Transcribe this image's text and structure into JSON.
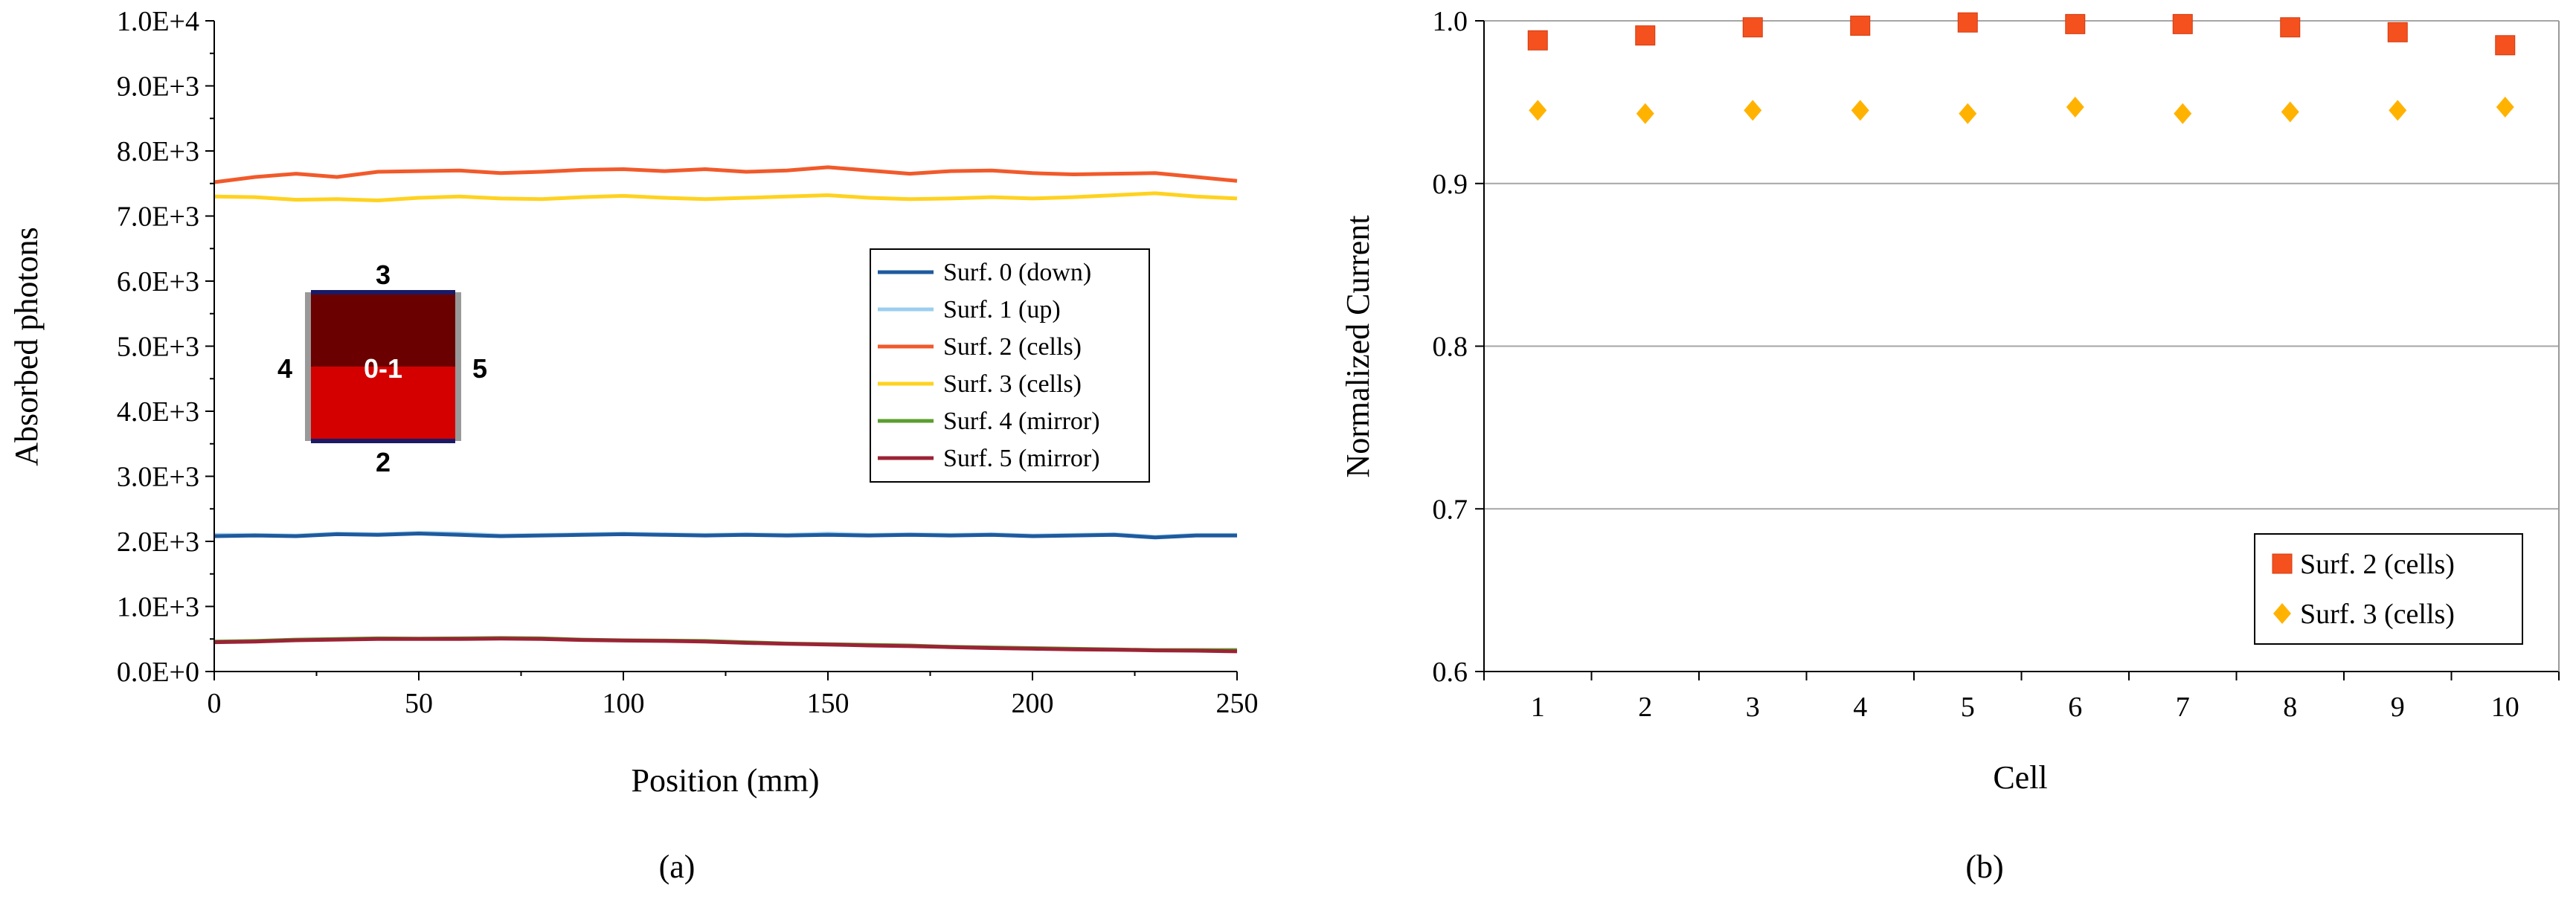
{
  "figure_labels": {
    "a": "(a)",
    "b": "(b)"
  },
  "inset": {
    "top": "3",
    "bottom": "2",
    "left": "4",
    "right": "5",
    "center": "0-1",
    "colors": {
      "upper": "#6b0000",
      "lower": "#d40000",
      "edge": "#1a1a66",
      "side": "#999999"
    }
  },
  "chart_data": [
    {
      "type": "line",
      "title": "",
      "xlabel": "Position (mm)",
      "ylabel": "Absorbed photons",
      "xlim": [
        0,
        250
      ],
      "ylim": [
        0,
        10000
      ],
      "xticks": [
        "0",
        "50",
        "100",
        "150",
        "200",
        "250"
      ],
      "yticks": [
        "0.0E+0",
        "1.0E+3",
        "2.0E+3",
        "3.0E+3",
        "4.0E+3",
        "5.0E+3",
        "6.0E+3",
        "7.0E+3",
        "8.0E+3",
        "9.0E+3",
        "1.0E+4"
      ],
      "x": [
        0,
        10,
        20,
        30,
        40,
        50,
        60,
        70,
        80,
        90,
        100,
        110,
        120,
        130,
        140,
        150,
        160,
        170,
        180,
        190,
        200,
        210,
        220,
        230,
        240,
        250
      ],
      "legend_position": "right",
      "series": [
        {
          "name": "Surf. 0 (down)",
          "color": "#1f5a9e",
          "values": [
            2080,
            2090,
            2080,
            2110,
            2100,
            2120,
            2100,
            2080,
            2090,
            2100,
            2110,
            2100,
            2090,
            2100,
            2090,
            2100,
            2090,
            2100,
            2090,
            2100,
            2080,
            2090,
            2100,
            2060,
            2090,
            2090
          ]
        },
        {
          "name": "Surf. 1 (up)",
          "color": "#9ccfee",
          "values": [
            2100,
            2100,
            2090,
            2120,
            2110,
            2130,
            2120,
            2090,
            2100,
            2110,
            2120,
            2110,
            2100,
            2110,
            2100,
            2120,
            2100,
            2110,
            2100,
            2110,
            2090,
            2100,
            2110,
            2070,
            2100,
            2100
          ]
        },
        {
          "name": "Surf. 2 (cells)",
          "color": "#f15a2b",
          "values": [
            7520,
            7600,
            7650,
            7600,
            7680,
            7690,
            7700,
            7660,
            7680,
            7710,
            7720,
            7690,
            7720,
            7680,
            7700,
            7750,
            7700,
            7650,
            7690,
            7700,
            7660,
            7640,
            7650,
            7660,
            7600,
            7540
          ]
        },
        {
          "name": "Surf. 3 (cells)",
          "color": "#ffd21f",
          "values": [
            7300,
            7290,
            7250,
            7260,
            7240,
            7280,
            7300,
            7270,
            7260,
            7290,
            7310,
            7280,
            7260,
            7280,
            7300,
            7320,
            7280,
            7260,
            7270,
            7290,
            7270,
            7290,
            7320,
            7350,
            7300,
            7270
          ]
        },
        {
          "name": "Surf. 4 (mirror)",
          "color": "#5b9e2f",
          "values": [
            460,
            470,
            490,
            500,
            510,
            505,
            510,
            515,
            510,
            490,
            480,
            475,
            470,
            450,
            430,
            420,
            410,
            400,
            380,
            370,
            360,
            350,
            340,
            330,
            330,
            330
          ]
        },
        {
          "name": "Surf. 5 (mirror)",
          "color": "#9b2335",
          "values": [
            450,
            460,
            480,
            490,
            500,
            500,
            500,
            505,
            500,
            485,
            475,
            470,
            460,
            440,
            425,
            415,
            400,
            390,
            375,
            360,
            350,
            340,
            335,
            325,
            320,
            310
          ]
        }
      ]
    },
    {
      "type": "scatter",
      "title": "",
      "xlabel": "Cell",
      "ylabel": "Normalized Current",
      "ylim": [
        0.6,
        1.0
      ],
      "categories": [
        "1",
        "2",
        "3",
        "4",
        "5",
        "6",
        "7",
        "8",
        "9",
        "10"
      ],
      "yticks": [
        "0.6",
        "0.7",
        "0.8",
        "0.9",
        "1.0"
      ],
      "grid": true,
      "legend_position": "bottom-right",
      "series": [
        {
          "name": "Surf. 2 (cells)",
          "color": "#f4511e",
          "marker": "square",
          "values": [
            0.988,
            0.991,
            0.996,
            0.997,
            0.999,
            0.998,
            0.998,
            0.996,
            0.993,
            0.985
          ]
        },
        {
          "name": "Surf. 3 (cells)",
          "color": "#ffb300",
          "marker": "diamond",
          "values": [
            0.945,
            0.943,
            0.945,
            0.945,
            0.943,
            0.947,
            0.943,
            0.944,
            0.945,
            0.947
          ]
        }
      ]
    }
  ]
}
